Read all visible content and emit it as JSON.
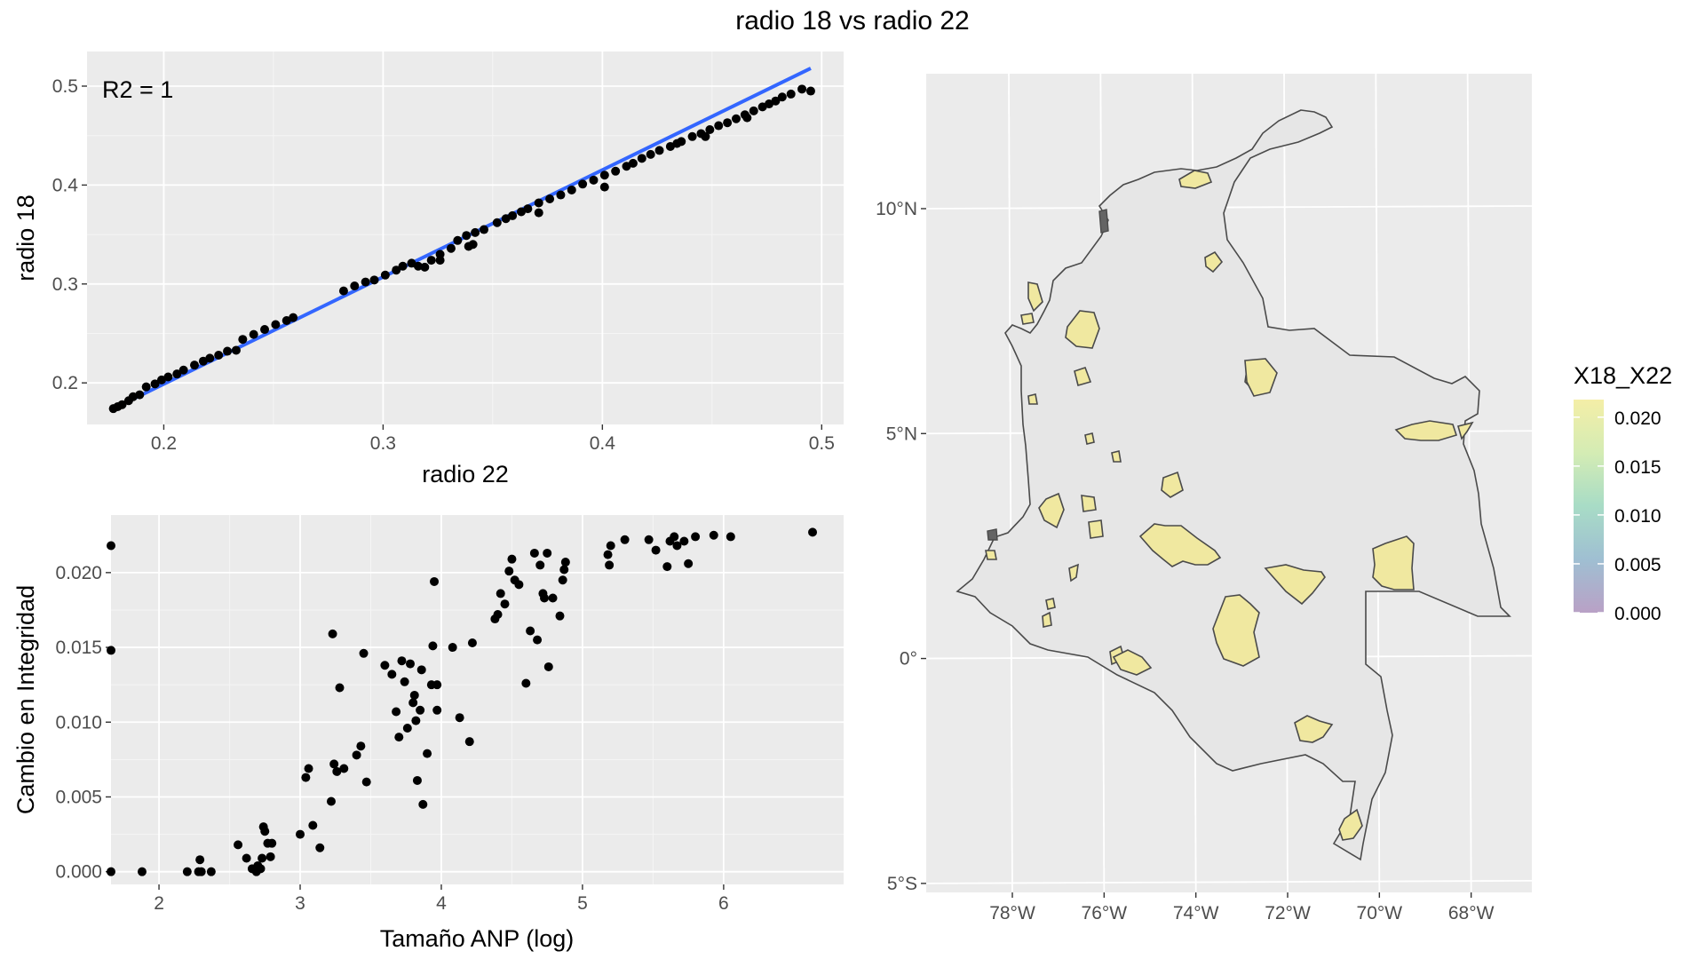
{
  "figure": {
    "title": "radio 18 vs radio 22"
  },
  "chart_data": [
    {
      "type": "scatter",
      "xlabel": "radio 22",
      "ylabel": "radio 18",
      "xlim": [
        0.165,
        0.51
      ],
      "ylim": [
        0.158,
        0.535
      ],
      "xticks": [
        0.2,
        0.3,
        0.4,
        0.5
      ],
      "yticks": [
        0.2,
        0.3,
        0.4,
        0.5
      ],
      "xtick_labels": [
        "0.2",
        "0.3",
        "0.4",
        "0.5"
      ],
      "ytick_labels": [
        "0.2",
        "0.3",
        "0.4",
        "0.5"
      ],
      "annotation": "R2 = 1",
      "grid": true,
      "trend_line": {
        "x": [
          0.177,
          0.495
        ],
        "y": [
          0.174,
          0.518
        ],
        "color": "#3366ff"
      },
      "points": [
        [
          0.177,
          0.174
        ],
        [
          0.179,
          0.176
        ],
        [
          0.181,
          0.178
        ],
        [
          0.184,
          0.182
        ],
        [
          0.186,
          0.186
        ],
        [
          0.189,
          0.188
        ],
        [
          0.192,
          0.196
        ],
        [
          0.196,
          0.199
        ],
        [
          0.199,
          0.203
        ],
        [
          0.202,
          0.206
        ],
        [
          0.206,
          0.209
        ],
        [
          0.209,
          0.213
        ],
        [
          0.214,
          0.218
        ],
        [
          0.218,
          0.222
        ],
        [
          0.221,
          0.225
        ],
        [
          0.225,
          0.228
        ],
        [
          0.229,
          0.232
        ],
        [
          0.236,
          0.244
        ],
        [
          0.241,
          0.249
        ],
        [
          0.246,
          0.254
        ],
        [
          0.251,
          0.259
        ],
        [
          0.256,
          0.263
        ],
        [
          0.259,
          0.266
        ],
        [
          0.282,
          0.293
        ],
        [
          0.287,
          0.298
        ],
        [
          0.292,
          0.302
        ],
        [
          0.296,
          0.304
        ],
        [
          0.301,
          0.309
        ],
        [
          0.306,
          0.314
        ],
        [
          0.309,
          0.318
        ],
        [
          0.313,
          0.321
        ],
        [
          0.316,
          0.318
        ],
        [
          0.319,
          0.317
        ],
        [
          0.322,
          0.324
        ],
        [
          0.326,
          0.33
        ],
        [
          0.331,
          0.336
        ],
        [
          0.334,
          0.344
        ],
        [
          0.338,
          0.349
        ],
        [
          0.342,
          0.352
        ],
        [
          0.341,
          0.34
        ],
        [
          0.346,
          0.355
        ],
        [
          0.352,
          0.362
        ],
        [
          0.356,
          0.366
        ],
        [
          0.359,
          0.369
        ],
        [
          0.363,
          0.373
        ],
        [
          0.366,
          0.376
        ],
        [
          0.371,
          0.382
        ],
        [
          0.376,
          0.386
        ],
        [
          0.381,
          0.39
        ],
        [
          0.386,
          0.395
        ],
        [
          0.391,
          0.401
        ],
        [
          0.396,
          0.405
        ],
        [
          0.401,
          0.41
        ],
        [
          0.406,
          0.414
        ],
        [
          0.411,
          0.419
        ],
        [
          0.414,
          0.422
        ],
        [
          0.418,
          0.427
        ],
        [
          0.422,
          0.431
        ],
        [
          0.426,
          0.435
        ],
        [
          0.431,
          0.439
        ],
        [
          0.436,
          0.444
        ],
        [
          0.441,
          0.449
        ],
        [
          0.445,
          0.452
        ],
        [
          0.449,
          0.456
        ],
        [
          0.453,
          0.46
        ],
        [
          0.457,
          0.463
        ],
        [
          0.461,
          0.467
        ],
        [
          0.465,
          0.471
        ],
        [
          0.469,
          0.475
        ],
        [
          0.473,
          0.479
        ],
        [
          0.476,
          0.482
        ],
        [
          0.479,
          0.485
        ],
        [
          0.482,
          0.489
        ],
        [
          0.486,
          0.492
        ],
        [
          0.491,
          0.497
        ],
        [
          0.495,
          0.495
        ],
        [
          0.434,
          0.442
        ],
        [
          0.447,
          0.449
        ],
        [
          0.466,
          0.468
        ],
        [
          0.339,
          0.338
        ],
        [
          0.371,
          0.372
        ],
        [
          0.326,
          0.324
        ],
        [
          0.401,
          0.398
        ],
        [
          0.233,
          0.233
        ]
      ]
    },
    {
      "type": "scatter",
      "xlabel": "Tamaño ANP (log)",
      "ylabel": "Cambio en Integridad",
      "xlim": [
        1.66,
        6.85
      ],
      "ylim": [
        -0.00085,
        0.02385
      ],
      "xticks": [
        2,
        3,
        4,
        5,
        6
      ],
      "yticks": [
        0.0,
        0.005,
        0.01,
        0.015,
        0.02
      ],
      "xtick_labels": [
        "2",
        "3",
        "4",
        "5",
        "6"
      ],
      "ytick_labels": [
        "0.000",
        "0.005",
        "0.010",
        "0.015",
        "0.020"
      ],
      "grid": true,
      "points": [
        [
          1.66,
          0.0218
        ],
        [
          1.66,
          0.0148
        ],
        [
          1.66,
          0.0
        ],
        [
          1.88,
          0.0
        ],
        [
          2.2,
          0.0
        ],
        [
          2.28,
          0.0
        ],
        [
          2.29,
          0.0008
        ],
        [
          2.3,
          0.0
        ],
        [
          2.37,
          0.0
        ],
        [
          2.56,
          0.0018
        ],
        [
          2.62,
          0.0009
        ],
        [
          2.66,
          0.0002
        ],
        [
          2.69,
          0.0
        ],
        [
          2.7,
          0.0004
        ],
        [
          2.72,
          0.0002
        ],
        [
          2.73,
          0.0009
        ],
        [
          2.74,
          0.003
        ],
        [
          2.75,
          0.0027
        ],
        [
          2.77,
          0.0019
        ],
        [
          2.79,
          0.001
        ],
        [
          2.8,
          0.0019
        ],
        [
          3.0,
          0.0025
        ],
        [
          3.04,
          0.0063
        ],
        [
          3.06,
          0.0069
        ],
        [
          3.09,
          0.0031
        ],
        [
          3.14,
          0.0016
        ],
        [
          3.22,
          0.0047
        ],
        [
          3.23,
          0.0159
        ],
        [
          3.24,
          0.0072
        ],
        [
          3.26,
          0.0067
        ],
        [
          3.28,
          0.0123
        ],
        [
          3.31,
          0.0069
        ],
        [
          3.4,
          0.0078
        ],
        [
          3.43,
          0.0084
        ],
        [
          3.45,
          0.0146
        ],
        [
          3.47,
          0.006
        ],
        [
          3.6,
          0.0138
        ],
        [
          3.65,
          0.0132
        ],
        [
          3.68,
          0.0107
        ],
        [
          3.7,
          0.009
        ],
        [
          3.72,
          0.0141
        ],
        [
          3.74,
          0.0127
        ],
        [
          3.76,
          0.0096
        ],
        [
          3.78,
          0.0139
        ],
        [
          3.8,
          0.0113
        ],
        [
          3.81,
          0.0118
        ],
        [
          3.82,
          0.0101
        ],
        [
          3.83,
          0.0061
        ],
        [
          3.85,
          0.0108
        ],
        [
          3.86,
          0.0135
        ],
        [
          3.87,
          0.0045
        ],
        [
          3.9,
          0.0079
        ],
        [
          3.93,
          0.0125
        ],
        [
          3.94,
          0.0151
        ],
        [
          3.95,
          0.0194
        ],
        [
          3.97,
          0.0108
        ],
        [
          3.97,
          0.0125
        ],
        [
          4.08,
          0.015
        ],
        [
          4.13,
          0.0103
        ],
        [
          4.2,
          0.0087
        ],
        [
          4.22,
          0.0153
        ],
        [
          4.38,
          0.0169
        ],
        [
          4.4,
          0.0172
        ],
        [
          4.42,
          0.0186
        ],
        [
          4.45,
          0.0179
        ],
        [
          4.48,
          0.0201
        ],
        [
          4.5,
          0.0209
        ],
        [
          4.52,
          0.0195
        ],
        [
          4.55,
          0.0192
        ],
        [
          4.6,
          0.0126
        ],
        [
          4.63,
          0.0161
        ],
        [
          4.66,
          0.0213
        ],
        [
          4.68,
          0.0155
        ],
        [
          4.7,
          0.0205
        ],
        [
          4.72,
          0.0186
        ],
        [
          4.73,
          0.0183
        ],
        [
          4.75,
          0.0213
        ],
        [
          4.76,
          0.0137
        ],
        [
          4.79,
          0.0183
        ],
        [
          4.84,
          0.0171
        ],
        [
          4.86,
          0.0195
        ],
        [
          4.87,
          0.0202
        ],
        [
          4.88,
          0.0207
        ],
        [
          5.18,
          0.0212
        ],
        [
          5.19,
          0.0205
        ],
        [
          5.2,
          0.0218
        ],
        [
          5.3,
          0.0222
        ],
        [
          5.47,
          0.0222
        ],
        [
          5.52,
          0.0215
        ],
        [
          5.6,
          0.0204
        ],
        [
          5.62,
          0.0221
        ],
        [
          5.65,
          0.0224
        ],
        [
          5.67,
          0.0218
        ],
        [
          5.72,
          0.0221
        ],
        [
          5.75,
          0.0206
        ],
        [
          5.8,
          0.0224
        ],
        [
          5.93,
          0.0225
        ],
        [
          6.05,
          0.0224
        ],
        [
          6.63,
          0.0227
        ]
      ]
    },
    {
      "type": "map",
      "xlim": [
        -79.8,
        -66.6
      ],
      "ylim": [
        -5.2,
        13.0
      ],
      "xticks": [
        -78,
        -76,
        -74,
        -72,
        -70,
        -68
      ],
      "yticks": [
        10,
        5,
        0,
        -5
      ],
      "xtick_labels": [
        "78°W",
        "76°W",
        "74°W",
        "72°W",
        "70°W",
        "68°W"
      ],
      "ytick_labels": [
        "10°N",
        "5°N",
        "0°",
        "5°S"
      ],
      "fill_colors": {
        "land": "#e6e6e6",
        "protected_area": "#f0e8a0",
        "zero_area": "#646464"
      },
      "legend": {
        "title": "X18_X22",
        "range": [
          0.0,
          0.0218
        ],
        "tick_values": [
          0.02,
          0.015,
          0.01,
          0.005,
          0.0
        ],
        "tick_labels": [
          "0.020",
          "0.015",
          "0.010",
          "0.005",
          "0.000"
        ],
        "gradient_colors": [
          "#f4eea7",
          "#d4ecb4",
          "#a8dcc6",
          "#9fbfd2",
          "#b9a1c6"
        ]
      }
    }
  ]
}
